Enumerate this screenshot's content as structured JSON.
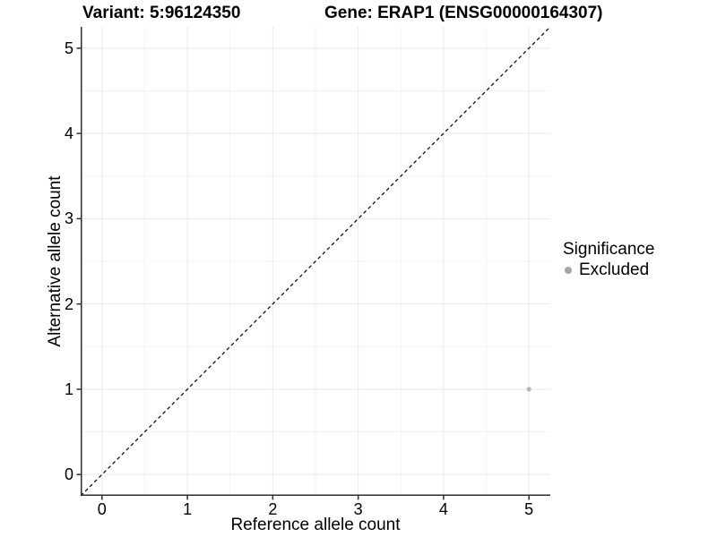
{
  "figure": {
    "title_left": "Variant: 5:96124350",
    "title_right": "Gene: ERAP1 (ENSG00000164307)"
  },
  "chart_data": {
    "type": "scatter",
    "title": "Variant: 5:96124350   Gene: ERAP1 (ENSG00000164307)",
    "xlabel": "Reference allele count",
    "ylabel": "Alternative allele count",
    "xlim": [
      -0.25,
      5.25
    ],
    "ylim": [
      -0.25,
      5.25
    ],
    "x_ticks": [
      0,
      1,
      2,
      3,
      4,
      5
    ],
    "y_ticks": [
      0,
      1,
      2,
      3,
      4,
      5
    ],
    "x_minor_ticks": [
      0.5,
      1.5,
      2.5,
      3.5,
      4.5
    ],
    "y_minor_ticks": [
      0.5,
      1.5,
      2.5,
      3.5,
      4.5
    ],
    "grid": true,
    "series": [
      {
        "name": "Excluded",
        "marker": "circle",
        "color": "#b9b9b9",
        "points": [
          {
            "x": 5,
            "y": 1
          }
        ]
      }
    ],
    "reference_line": {
      "kind": "identity",
      "style": "dashed",
      "color": "#000000",
      "x1": -0.25,
      "y1": -0.25,
      "x2": 5.25,
      "y2": 5.25
    },
    "legend": {
      "title": "Significance",
      "position": "right",
      "items": [
        {
          "label": "Excluded",
          "marker": "circle",
          "color": "#a6a6a6"
        }
      ]
    }
  },
  "style": {
    "background": "#ffffff",
    "text_color": "#000000",
    "grid_major_color": "#e9e9e9",
    "grid_minor_color": "#f4f4f4",
    "axis_line_color": "#2e2e2e",
    "tick_mark_color": "#2e2e2e",
    "dashed_line_color": "#000000",
    "point_color": "#b9b9b9",
    "legend_marker_color": "#a6a6a6"
  }
}
